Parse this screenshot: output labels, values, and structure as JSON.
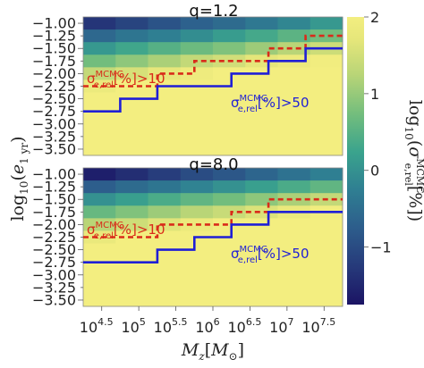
{
  "chart_data": {
    "type": "heatmap",
    "xlabel": "M_z[M_⊙]",
    "ylabel": "log10(e1 yr)",
    "colorbar_label": "log10(σ e,rel MCMC[%])",
    "x_tick_labels": [
      {
        "base": "10",
        "exp": "4.5",
        "value": 4.5
      },
      {
        "base": "10",
        "exp": "5",
        "value": 5.0
      },
      {
        "base": "10",
        "exp": "5.5",
        "value": 5.5
      },
      {
        "base": "10",
        "exp": "6",
        "value": 6.0
      },
      {
        "base": "10",
        "exp": "6.5",
        "value": 6.5
      },
      {
        "base": "10",
        "exp": "7",
        "value": 7.0
      },
      {
        "base": "10",
        "exp": "7.5",
        "value": 7.5
      }
    ],
    "y_tick_labels": [
      "−1.00",
      "−1.50",
      "−2.00",
      "−2.50",
      "−3.00",
      "−3.50"
    ],
    "y_ticks": [
      -1.0,
      -1.25,
      -1.5,
      -1.75,
      -2.0,
      -2.25,
      -2.5,
      -2.75,
      -3.0,
      -3.25,
      -3.5
    ],
    "colorbar": {
      "ticks": [
        2,
        1,
        0,
        -1
      ],
      "tick_labels": [
        "2",
        "1",
        "0",
        "−1"
      ],
      "range": [
        -1.75,
        2.0
      ]
    },
    "x_bins_log10M": [
      4.25,
      4.75,
      5.25,
      5.75,
      6.25,
      6.75,
      7.25,
      7.75
    ],
    "y_bins_log10e": [
      -0.875,
      -1.125,
      -1.375,
      -1.625,
      -1.875,
      -2.125,
      -2.375,
      -2.625,
      -2.875,
      -3.125,
      -3.375,
      -3.625
    ],
    "panels": [
      {
        "title": "q=1.2",
        "values": [
          [
            -1.3,
            -1.1,
            -0.9,
            -0.7,
            -0.55,
            -0.35,
            -0.15,
            0.1
          ],
          [
            -0.6,
            -0.4,
            -0.25,
            -0.05,
            0.15,
            0.35,
            0.55,
            0.75
          ],
          [
            0.1,
            0.3,
            0.5,
            0.7,
            0.85,
            1.05,
            1.25,
            1.45
          ],
          [
            0.75,
            0.95,
            1.15,
            1.35,
            1.5,
            1.7,
            1.85,
            1.95
          ],
          [
            1.35,
            1.55,
            1.75,
            1.9,
            2.0,
            2.0,
            2.0,
            2.0
          ],
          [
            1.85,
            2.0,
            2.0,
            2.0,
            2.0,
            2.0,
            2.0,
            2.0
          ],
          [
            2.0,
            2.0,
            2.0,
            2.0,
            2.0,
            2.0,
            2.0,
            2.0
          ],
          [
            2.0,
            2.0,
            2.0,
            2.0,
            2.0,
            2.0,
            2.0,
            2.0
          ],
          [
            2.0,
            2.0,
            2.0,
            2.0,
            2.0,
            2.0,
            2.0,
            2.0
          ],
          [
            2.0,
            2.0,
            2.0,
            2.0,
            2.0,
            2.0,
            2.0,
            2.0
          ],
          [
            2.0,
            2.0,
            2.0,
            2.0,
            2.0,
            2.0,
            2.0,
            2.0
          ]
        ],
        "contour_10pct": {
          "x": [
            4.25,
            5.25,
            5.25,
            5.75,
            5.75,
            6.75,
            6.75,
            7.25,
            7.25,
            7.75
          ],
          "y": [
            -2.25,
            -2.25,
            -2.0,
            -2.0,
            -1.75,
            -1.75,
            -1.5,
            -1.5,
            -1.25,
            -1.25
          ]
        },
        "contour_50pct": {
          "x": [
            4.25,
            4.75,
            4.75,
            5.25,
            5.25,
            5.75,
            5.75,
            6.25,
            6.25,
            6.75,
            6.75,
            7.25,
            7.25,
            7.75
          ],
          "y": [
            -2.75,
            -2.75,
            -2.5,
            -2.5,
            -2.25,
            -2.25,
            -2.25,
            -2.25,
            -2.0,
            -2.0,
            -1.75,
            -1.75,
            -1.5,
            -1.5
          ]
        }
      },
      {
        "title": "q=8.0",
        "values": [
          [
            -1.6,
            -1.4,
            -1.2,
            -1.0,
            -0.85,
            -0.65,
            -0.45,
            -0.25
          ],
          [
            -0.75,
            -0.55,
            -0.4,
            -0.2,
            0.0,
            0.2,
            0.4,
            0.6
          ],
          [
            0.0,
            0.2,
            0.4,
            0.6,
            0.75,
            0.95,
            1.15,
            1.35
          ],
          [
            0.65,
            0.85,
            1.05,
            1.25,
            1.4,
            1.6,
            1.8,
            1.95
          ],
          [
            1.25,
            1.45,
            1.65,
            1.85,
            2.0,
            2.0,
            2.0,
            2.0
          ],
          [
            1.8,
            2.0,
            2.0,
            2.0,
            2.0,
            2.0,
            2.0,
            2.0
          ],
          [
            2.0,
            2.0,
            2.0,
            2.0,
            2.0,
            2.0,
            2.0,
            2.0
          ],
          [
            2.0,
            2.0,
            2.0,
            2.0,
            2.0,
            2.0,
            2.0,
            2.0
          ],
          [
            2.0,
            2.0,
            2.0,
            2.0,
            2.0,
            2.0,
            2.0,
            2.0
          ],
          [
            2.0,
            2.0,
            2.0,
            2.0,
            2.0,
            2.0,
            2.0,
            2.0
          ],
          [
            2.0,
            2.0,
            2.0,
            2.0,
            2.0,
            2.0,
            2.0,
            2.0
          ]
        ],
        "contour_10pct": {
          "x": [
            4.25,
            5.25,
            5.25,
            6.25,
            6.25,
            6.75,
            6.75,
            7.75
          ],
          "y": [
            -2.25,
            -2.25,
            -2.0,
            -2.0,
            -1.75,
            -1.75,
            -1.5,
            -1.5
          ]
        },
        "contour_50pct": {
          "x": [
            4.25,
            4.75,
            4.75,
            5.25,
            5.25,
            5.75,
            5.75,
            6.25,
            6.25,
            6.75,
            6.75,
            7.25,
            7.25,
            7.75
          ],
          "y": [
            -2.75,
            -2.75,
            -2.75,
            -2.75,
            -2.5,
            -2.5,
            -2.25,
            -2.25,
            -2.0,
            -2.0,
            -1.75,
            -1.75,
            -1.75,
            -1.75
          ]
        }
      }
    ],
    "annotations": {
      "red": {
        "sigma": "σ",
        "sup": "MCMC",
        "sub": "e,rel",
        "rest": "[%]>10",
        "color": "#d92b1a"
      },
      "blue": {
        "sigma": "σ",
        "sup": "MCMC",
        "sub": "e,rel",
        "rest": "[%]>50",
        "color": "#1f1fd6"
      }
    },
    "grid": false
  }
}
